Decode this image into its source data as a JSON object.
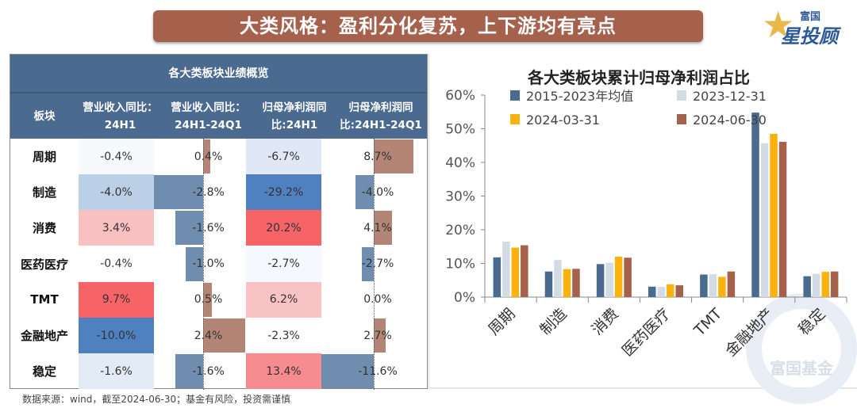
{
  "banner": {
    "title": "大类风格：盈利分化复苏，上下游均有亮点"
  },
  "logo": {
    "line1": "富国",
    "line2": "星投顾"
  },
  "table": {
    "title": "各大类板块业绩概览",
    "headers": [
      "板块",
      "营业收入同比：24H1",
      "营业收入同比：24H1-24Q1",
      "归母净利润同比:24H1",
      "归母净利润同比:24H1-24Q1"
    ],
    "rows": [
      {
        "sector": "周期",
        "rev_yoy": "-0.4%",
        "rev_diff": "0.4%",
        "np_yoy": "-6.7%",
        "np_diff": "8.7%",
        "rev_yoy_color": "#f7f9fc",
        "np_yoy_color": "#dfe8f4"
      },
      {
        "sector": "制造",
        "rev_yoy": "-4.0%",
        "rev_diff": "-2.8%",
        "np_yoy": "-29.2%",
        "np_diff": "-4.0%",
        "rev_yoy_color": "#bbcfe7",
        "np_yoy_color": "#4f81c0"
      },
      {
        "sector": "消费",
        "rev_yoy": "3.4%",
        "rev_diff": "-1.6%",
        "np_yoy": "20.2%",
        "np_diff": "4.1%",
        "rev_yoy_color": "#f9c0c2",
        "np_yoy_color": "#f66468"
      },
      {
        "sector": "医药医疗",
        "rev_yoy": "-0.4%",
        "rev_diff": "-1.0%",
        "np_yoy": "-2.7%",
        "np_diff": "-2.7%",
        "rev_yoy_color": "#ffffff",
        "np_yoy_color": "#f5f8fc"
      },
      {
        "sector": "TMT",
        "rev_yoy": "9.7%",
        "rev_diff": "0.5%",
        "np_yoy": "6.2%",
        "np_diff": "0.0%",
        "rev_yoy_color": "#f66468",
        "np_yoy_color": "#f9c3c5"
      },
      {
        "sector": "金融地产",
        "rev_yoy": "-10.0%",
        "rev_diff": "2.4%",
        "np_yoy": "-2.3%",
        "np_diff": "2.7%",
        "rev_yoy_color": "#4f81c0",
        "np_yoy_color": "#ffffff"
      },
      {
        "sector": "稳定",
        "rev_yoy": "-1.6%",
        "rev_diff": "-1.6%",
        "np_yoy": "13.4%",
        "np_diff": "-11.6%",
        "rev_yoy_color": "#e3ebf6",
        "np_yoy_color": "#f78c90"
      }
    ],
    "bar_colors": {
      "positive": "#b28577",
      "negative": "#6f8eaf"
    }
  },
  "chart_data": {
    "type": "bar",
    "title": "各大类板块累计归母净利润占比",
    "categories": [
      "周期",
      "制造",
      "消费",
      "医药医疗",
      "TMT",
      "金融地产",
      "稳定"
    ],
    "series": [
      {
        "name": "2015-2023年均值",
        "color": "#4a6b8f",
        "values": [
          11.8,
          7.6,
          9.8,
          3.1,
          6.7,
          54.8,
          6.2
        ]
      },
      {
        "name": "2023-12-31",
        "color": "#d3dce5",
        "values": [
          16.5,
          11.0,
          10.2,
          3.0,
          6.8,
          45.7,
          6.9
        ]
      },
      {
        "name": "2024-03-31",
        "color": "#fbb20f",
        "values": [
          14.7,
          8.3,
          12.0,
          3.8,
          6.0,
          48.5,
          7.5
        ]
      },
      {
        "name": "2024-06-30",
        "color": "#a6614d",
        "values": [
          15.4,
          8.4,
          11.7,
          3.5,
          7.6,
          46.1,
          7.6
        ]
      }
    ],
    "yticks": [
      "0%",
      "10%",
      "20%",
      "30%",
      "40%",
      "50%",
      "60%"
    ],
    "ylim": [
      0,
      60
    ],
    "grid": false,
    "legend": "top"
  },
  "watermark": "富国基金",
  "footer": "数据来源：wind，截至2024-06-30；基金有风险，投资需谨慎"
}
